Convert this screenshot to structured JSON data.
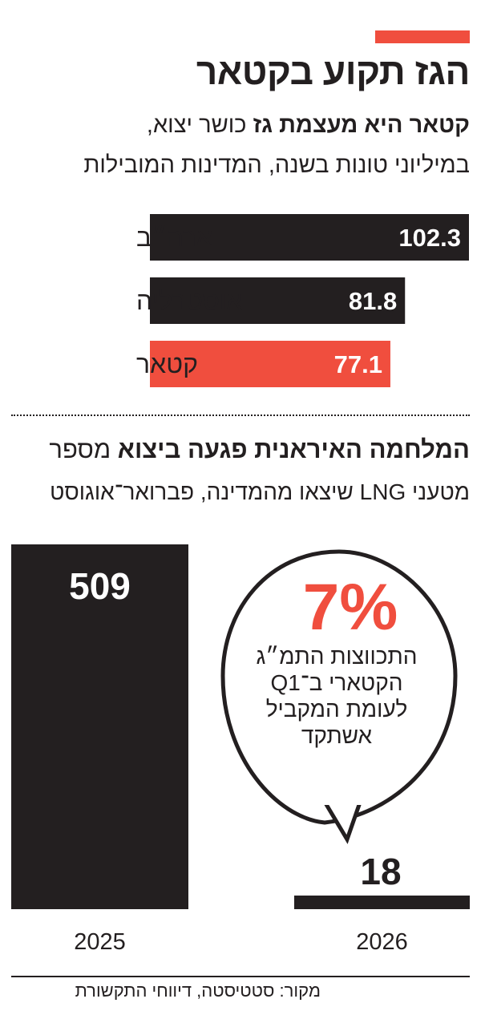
{
  "title": "הגז תקוע בקטאר",
  "subtitle": {
    "bold": "קטאר היא מעצמת גז",
    "regular": " כושר יצוא,",
    "line2": "במיליוני טונות בשנה, המדינות המובילות"
  },
  "section2": {
    "title_bold": "המלחמה האיראנית פגעה ביצוא",
    "title_regular": " מספר",
    "line2": "מטעני LNG שיצאו מהמדינה, פברואר־אוגוסט"
  },
  "callout": {
    "value": "7%",
    "lines": [
      "התכווצות התמ״ג",
      "הקטארי ב־Q1",
      "לעומת המקביל",
      "אשתקד"
    ]
  },
  "source": "מקור: סטטיסטה, דיווחי התקשורת",
  "colors": {
    "accent": "#f04e3e",
    "dark": "#231f20"
  },
  "chart_data": [
    {
      "type": "bar",
      "orientation": "horizontal",
      "categories": [
        "ארה״ב",
        "אוסטרליה",
        "קטאר"
      ],
      "values": [
        102.3,
        81.8,
        77.1
      ],
      "value_labels": [
        "102.3",
        "81.8",
        "77.1"
      ],
      "highlight": "קטאר"
    },
    {
      "type": "bar",
      "orientation": "vertical",
      "categories": [
        "2025",
        "2026"
      ],
      "values": [
        509,
        18
      ],
      "value_labels": [
        "509",
        "18"
      ]
    }
  ]
}
